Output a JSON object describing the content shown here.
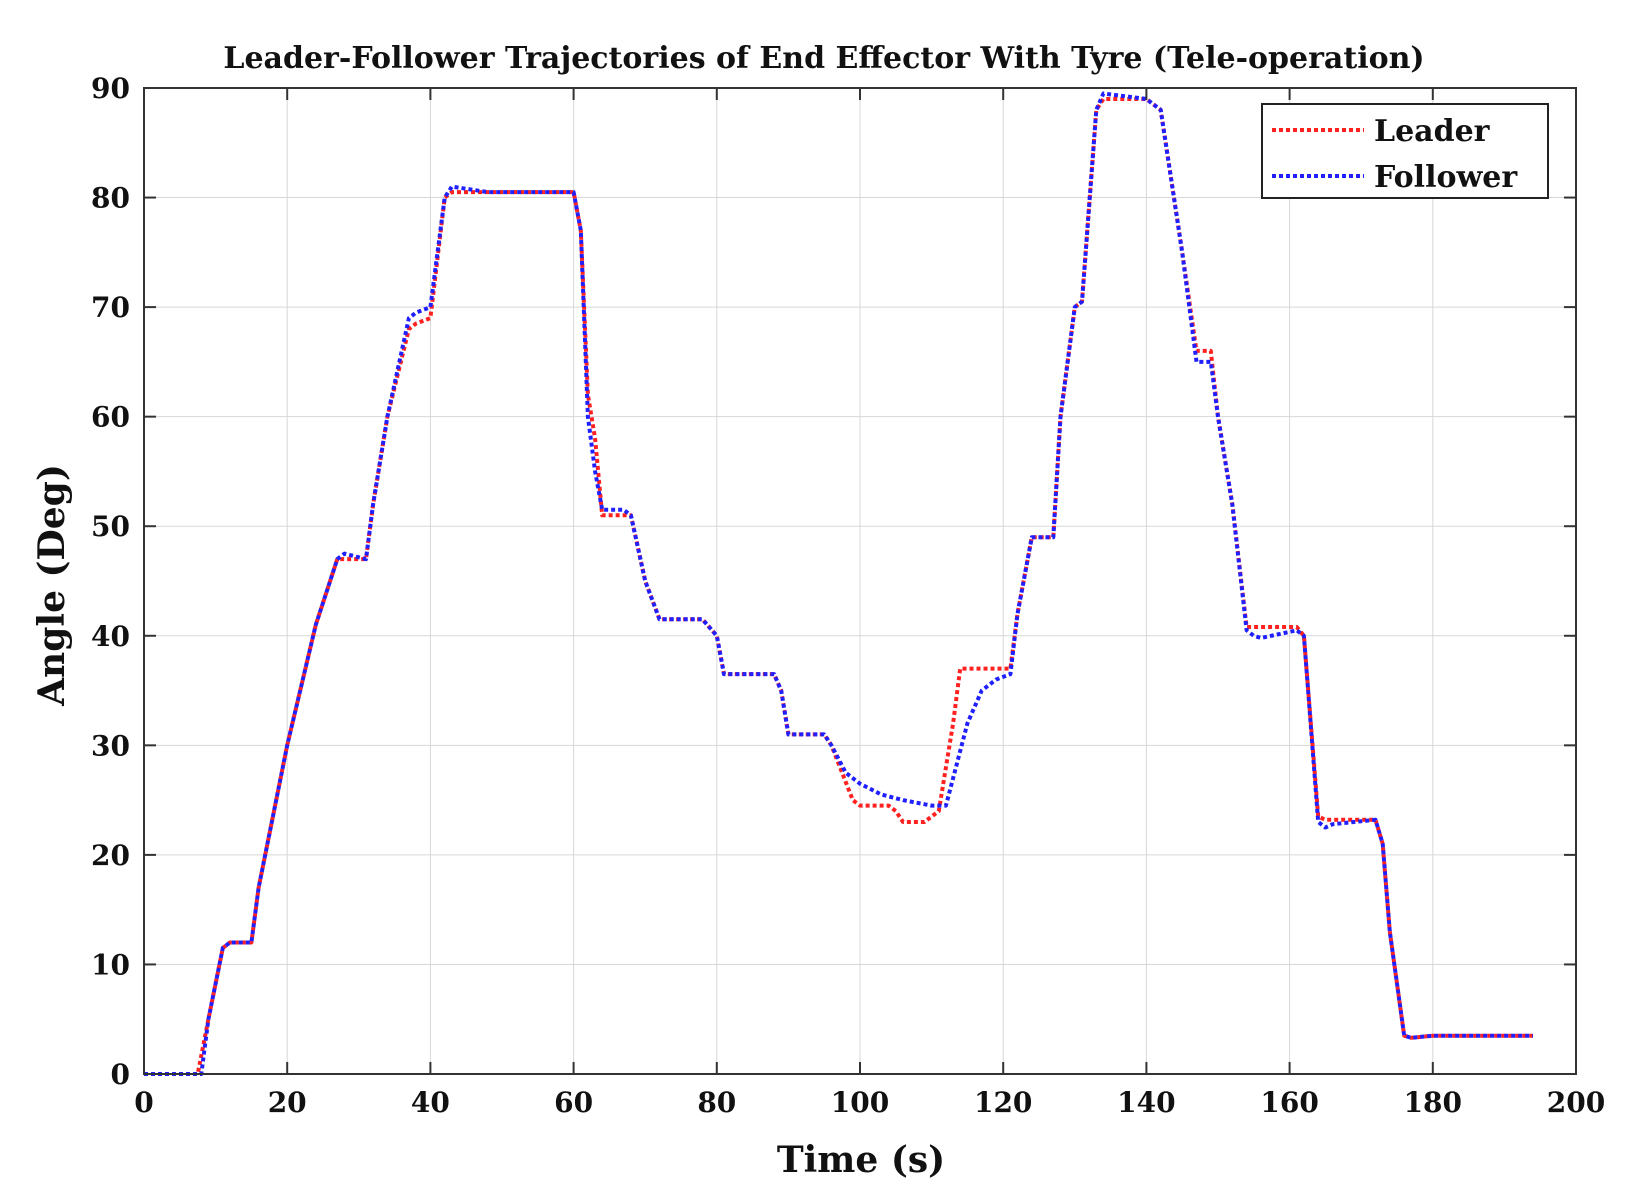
{
  "chart_data": {
    "type": "line",
    "title": "Leader-Follower Trajectories of End Effector With Tyre (Tele-operation)",
    "xlabel": "Time (s)",
    "ylabel": "Angle (Deg)",
    "xlim": [
      0,
      200
    ],
    "ylim": [
      0,
      90
    ],
    "xticks": [
      0,
      20,
      40,
      60,
      80,
      100,
      120,
      140,
      160,
      180,
      200
    ],
    "yticks": [
      0,
      10,
      20,
      30,
      40,
      50,
      60,
      70,
      80,
      90
    ],
    "xtick_labels": [
      "0",
      "20",
      "40",
      "60",
      "80",
      "100",
      "120",
      "140",
      "160",
      "180",
      "200"
    ],
    "ytick_labels": [
      "0",
      "10",
      "20",
      "30",
      "40",
      "50",
      "60",
      "70",
      "80",
      "90"
    ],
    "grid": true,
    "legend_position": "top-right",
    "series": [
      {
        "name": "Leader",
        "color": "#ff2020",
        "x": [
          0,
          7.5,
          9,
          11,
          12,
          15,
          16,
          20,
          24,
          27,
          28,
          31,
          32,
          34,
          37,
          38,
          40,
          42,
          43,
          48,
          60,
          61,
          62,
          63,
          64,
          67,
          68,
          70,
          72,
          78,
          80,
          81,
          88,
          89,
          90,
          95,
          96,
          99,
          100,
          104,
          105,
          106,
          109,
          111,
          113,
          114,
          115,
          121,
          122,
          124,
          125,
          127,
          128,
          130,
          131,
          133,
          134,
          140,
          142,
          145,
          147,
          149,
          150,
          152,
          154,
          155,
          161,
          162,
          164,
          165,
          172,
          173,
          174,
          176,
          177,
          180,
          194
        ],
        "y": [
          0,
          0,
          5,
          11.5,
          12,
          12,
          17,
          30,
          41,
          47,
          47,
          47,
          52,
          60,
          68,
          68.5,
          69,
          80,
          80.5,
          80.5,
          80.5,
          77,
          62,
          58,
          51,
          51,
          51,
          45,
          41.5,
          41.5,
          40,
          36.5,
          36.5,
          35,
          31,
          31,
          30,
          25,
          24.5,
          24.5,
          24,
          23,
          23,
          24,
          32,
          37,
          37,
          37,
          42,
          49,
          49,
          49,
          60,
          70,
          70.5,
          88,
          89,
          89,
          88,
          75,
          66,
          66,
          60,
          52,
          40.8,
          40.8,
          40.8,
          40,
          23.5,
          23.2,
          23.2,
          21,
          13,
          3.5,
          3.3,
          3.5,
          3.5
        ]
      },
      {
        "name": "Follower",
        "color": "#2020ff",
        "x": [
          0,
          8,
          9,
          11,
          12,
          15,
          16,
          20,
          24,
          27,
          28,
          31,
          32,
          34,
          37,
          38,
          40,
          42,
          43,
          48,
          60,
          61,
          62,
          63,
          64,
          67,
          68,
          70,
          72,
          78,
          80,
          81,
          88,
          89,
          90,
          95,
          96,
          98,
          100,
          103,
          106,
          110,
          112,
          113,
          115,
          117,
          119,
          121,
          122,
          124,
          125,
          127,
          128,
          130,
          131,
          133,
          134,
          140,
          142,
          145,
          147,
          149,
          150,
          152,
          154,
          155,
          156,
          161,
          162,
          164,
          165,
          166,
          172,
          173,
          174,
          176,
          177,
          180,
          194
        ],
        "y": [
          0,
          0,
          5,
          11.5,
          12,
          12,
          17,
          30,
          41,
          47,
          47.5,
          47,
          52,
          60,
          69,
          69.5,
          70,
          80,
          81,
          80.5,
          80.5,
          77,
          60,
          55,
          51.5,
          51.5,
          51,
          45,
          41.5,
          41.5,
          40,
          36.5,
          36.5,
          35,
          31,
          31,
          30,
          27.5,
          26.5,
          25.5,
          25,
          24.5,
          24.5,
          27,
          32,
          35,
          36,
          36.5,
          42,
          49,
          49,
          49,
          60,
          70,
          70.5,
          88,
          89.5,
          89,
          88,
          75,
          65,
          65,
          60,
          52,
          40.5,
          40,
          39.8,
          40.5,
          40,
          23,
          22.5,
          22.8,
          23.2,
          21,
          13,
          3.5,
          3.3,
          3.5,
          3.5
        ]
      }
    ]
  }
}
